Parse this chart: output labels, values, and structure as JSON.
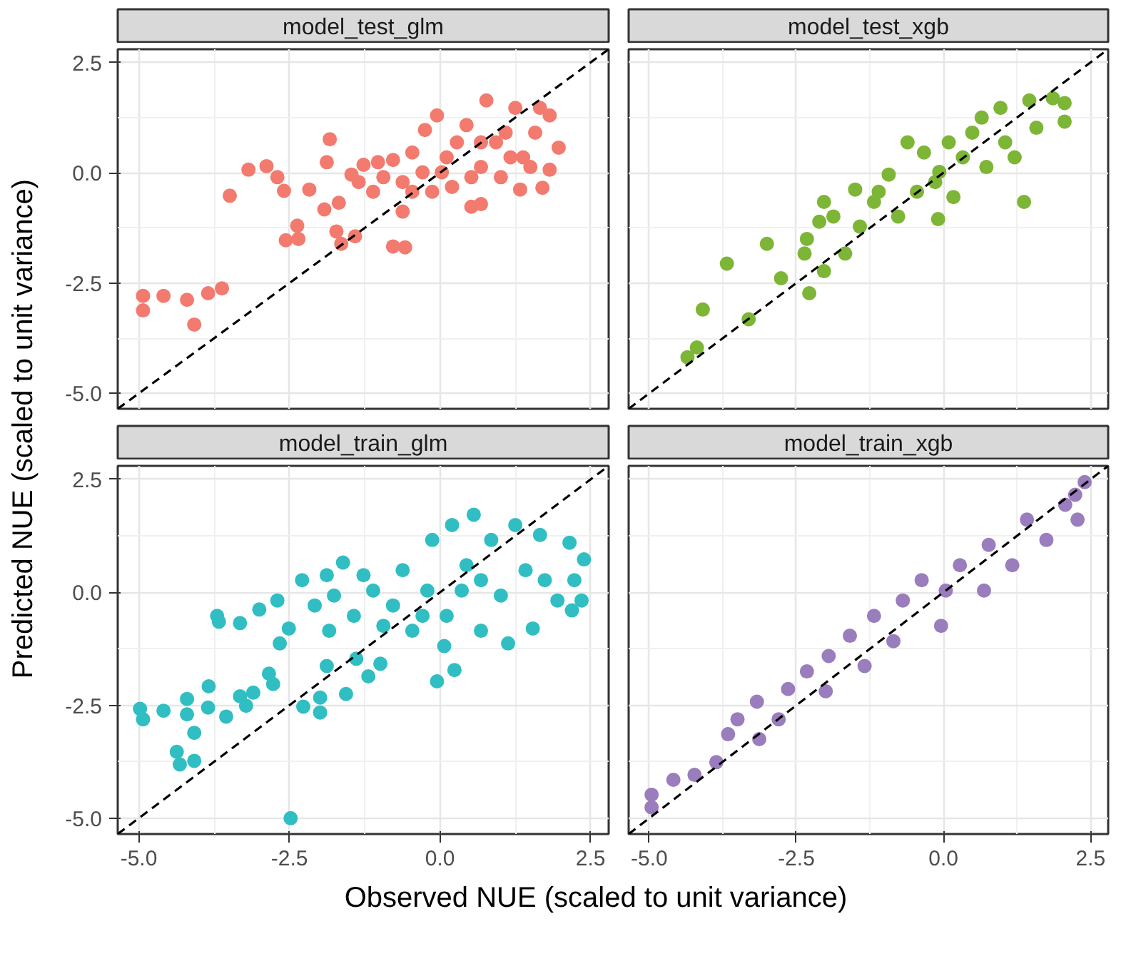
{
  "chart_data": [
    {
      "type": "scatter",
      "title": "model_test_glm",
      "ylabel": "Predicted NUE (scaled to unit variance)",
      "xlim": [
        -5.35,
        2.8
      ],
      "ylim": [
        -5.35,
        2.8
      ],
      "xticks": [
        {
          "value": -5,
          "label": null
        },
        {
          "value": -2.5,
          "label": null
        },
        {
          "value": 0,
          "label": null
        },
        {
          "value": 2.5,
          "label": null
        }
      ],
      "yticks": [
        {
          "value": -5,
          "label": "-5.0"
        },
        {
          "value": -2.5,
          "label": "-2.5"
        },
        {
          "value": 0,
          "label": "0.0"
        },
        {
          "value": 2.5,
          "label": "2.5"
        }
      ],
      "tick_labels": "y",
      "grid": true,
      "series": [
        {
          "marker": "circle",
          "color": "#f37a6e",
          "x": [
            -4.93,
            -4.93,
            -4.59,
            -4.2,
            -4.08,
            -3.85,
            -3.62,
            -3.49,
            -3.18,
            -2.88,
            -2.7,
            -2.59,
            -2.56,
            -2.37,
            -2.35,
            -2.17,
            -1.92,
            -1.88,
            -1.83,
            -1.68,
            -1.72,
            -1.64,
            -1.41,
            -0.78,
            -0.58,
            -1.47,
            -1.27,
            -1.11,
            -0.94,
            -0.78,
            -0.62,
            -0.46,
            -0.62,
            -0.29,
            -0.25,
            -0.05,
            -0.13,
            0.11,
            0.2,
            0.44,
            0.52,
            0.68,
            0.68,
            0.77,
            0.93,
            1.01,
            1.25,
            1.33,
            1.38,
            1.58,
            1.7,
            1.82,
            1.82,
            1.97,
            1.66,
            1.09,
            0.28,
            0.03,
            -1.03,
            0.68,
            1.17,
            1.5,
            -0.46,
            0.52,
            -1.35
          ],
          "values": [
            -2.79,
            -3.12,
            -2.79,
            -2.88,
            -3.44,
            -2.73,
            -2.62,
            -0.52,
            0.07,
            0.15,
            -0.1,
            -0.41,
            -1.53,
            -1.2,
            -1.5,
            -0.38,
            -0.83,
            0.24,
            0.76,
            -0.68,
            -1.33,
            -1.61,
            -1.44,
            -1.67,
            -1.69,
            -0.04,
            0.18,
            -0.43,
            -0.1,
            0.29,
            -0.21,
            0.46,
            -0.88,
            0.01,
            0.97,
            1.3,
            -0.43,
            0.35,
            -0.32,
            1.08,
            -0.77,
            -0.71,
            0.13,
            1.64,
            0.69,
            -0.1,
            1.47,
            -0.38,
            0.35,
            0.91,
            -0.34,
            1.3,
            0.07,
            0.57,
            1.47,
            0.91,
            0.69,
            0.01,
            0.24,
            0.69,
            0.35,
            0.13,
            -0.43,
            -0.1,
            -0.21
          ]
        },
        {
          "type": "line",
          "color": "#000000",
          "line_style": "dashed",
          "x": [
            -5.35,
            2.8
          ],
          "values": [
            -5.35,
            2.8
          ]
        }
      ]
    },
    {
      "type": "scatter",
      "title": "model_test_xgb",
      "xlim": [
        -5.35,
        2.8
      ],
      "ylim": [
        -5.35,
        2.8
      ],
      "xticks": [
        {
          "value": -5,
          "label": null
        },
        {
          "value": -2.5,
          "label": null
        },
        {
          "value": 0,
          "label": null
        },
        {
          "value": 2.5,
          "label": null
        }
      ],
      "yticks": [
        {
          "value": -5,
          "label": null
        },
        {
          "value": -2.5,
          "label": null
        },
        {
          "value": 0,
          "label": null
        },
        {
          "value": 2.5,
          "label": null
        }
      ],
      "tick_labels": false,
      "grid": true,
      "series": [
        {
          "marker": "circle",
          "color": "#7db536",
          "x": [
            -4.35,
            -4.19,
            -4.09,
            -3.31,
            -3.68,
            -3.0,
            -2.76,
            -2.28,
            -2.32,
            -2.36,
            -2.03,
            -2.03,
            -2.11,
            -1.87,
            -1.67,
            -1.5,
            -1.42,
            -1.18,
            -0.93,
            -0.77,
            -0.61,
            -0.45,
            -0.33,
            -0.09,
            -0.07,
            0.09,
            0.17,
            0.33,
            0.49,
            0.65,
            0.73,
            0.97,
            1.05,
            1.21,
            1.37,
            1.46,
            1.58,
            1.86,
            2.06,
            2.06,
            -1.1,
            -0.14
          ],
          "values": [
            -4.18,
            -3.96,
            -3.1,
            -3.32,
            -2.06,
            -1.61,
            -2.39,
            -2.73,
            -1.5,
            -1.83,
            -2.23,
            -0.66,
            -1.11,
            -0.99,
            -1.83,
            -0.38,
            -1.22,
            -0.66,
            -0.04,
            -0.99,
            0.69,
            -0.43,
            0.46,
            -1.05,
            0.02,
            0.69,
            -0.55,
            0.35,
            0.91,
            1.25,
            0.13,
            1.47,
            0.69,
            0.35,
            -0.66,
            1.64,
            1.02,
            1.69,
            1.58,
            1.16,
            -0.43,
            -0.21
          ]
        },
        {
          "type": "line",
          "color": "#000000",
          "line_style": "dashed",
          "x": [
            -5.35,
            2.8
          ],
          "values": [
            -5.35,
            2.8
          ]
        }
      ]
    },
    {
      "type": "scatter",
      "title": "model_train_glm",
      "xlabel": "Observed NUE (scaled to unit variance)",
      "xlim": [
        -5.35,
        2.8
      ],
      "ylim": [
        -5.35,
        2.8
      ],
      "xticks": [
        {
          "value": -5,
          "label": "-5.0"
        },
        {
          "value": -2.5,
          "label": "-2.5"
        },
        {
          "value": 0,
          "label": "0.0"
        },
        {
          "value": 2.5,
          "label": "2.5"
        }
      ],
      "yticks": [
        {
          "value": -5,
          "label": "-5.0"
        },
        {
          "value": -2.5,
          "label": "-2.5"
        },
        {
          "value": 0,
          "label": "0.0"
        },
        {
          "value": 2.5,
          "label": "2.5"
        }
      ],
      "grid": true,
      "series": [
        {
          "marker": "circle",
          "color": "#30bec3",
          "x": [
            -2.48,
            -4.98,
            -4.93,
            -4.59,
            -4.37,
            -4.32,
            -4.2,
            -4.2,
            -4.08,
            -4.08,
            -3.85,
            -3.84,
            -3.55,
            -3.7,
            -3.67,
            -3.32,
            -3.32,
            -3.22,
            -3.1,
            -3.0,
            -2.84,
            -2.77,
            -2.7,
            -2.66,
            -2.51,
            -2.29,
            -2.27,
            -1.99,
            -1.99,
            -1.88,
            -1.88,
            -1.61,
            -1.56,
            -1.39,
            -1.19,
            -1.27,
            -0.99,
            -0.05,
            0.24,
            0.07,
            0.56,
            1.13,
            2.15,
            2.39,
            2.23,
            2.35,
            2.19,
            1.95,
            1.54,
            -2.08,
            -1.76,
            -1.43,
            -1.11,
            -0.78,
            -0.62,
            -0.46,
            -0.21,
            -0.13,
            0.2,
            0.11,
            0.44,
            0.68,
            0.85,
            1.01,
            1.25,
            1.42,
            1.66,
            1.74,
            0.36,
            0.68,
            -0.29,
            -0.94,
            -1.84
          ],
          "values": [
            -5.0,
            -2.58,
            -2.81,
            -2.62,
            -3.53,
            -3.81,
            -2.7,
            -2.36,
            -3.11,
            -3.73,
            -2.55,
            -2.08,
            -2.75,
            -0.52,
            -0.65,
            -0.68,
            -2.3,
            -2.51,
            -2.22,
            -0.38,
            -1.8,
            -2.03,
            -0.18,
            -1.13,
            -0.8,
            0.27,
            -2.53,
            -2.33,
            -2.66,
            0.38,
            -1.63,
            0.66,
            -2.25,
            -1.47,
            -1.86,
            0.38,
            -1.58,
            -1.97,
            -1.72,
            -1.19,
            1.72,
            -1.13,
            1.1,
            0.73,
            0.27,
            -0.18,
            -0.4,
            -0.18,
            -0.8,
            -0.29,
            -0.07,
            -0.52,
            0.04,
            -0.29,
            0.49,
            -0.85,
            0.04,
            1.16,
            1.49,
            -0.52,
            0.6,
            -0.85,
            1.16,
            -0.07,
            1.49,
            0.49,
            1.27,
            0.27,
            0.04,
            0.27,
            -0.52,
            -0.74,
            -0.85
          ]
        },
        {
          "type": "line",
          "color": "#000000",
          "line_style": "dashed",
          "x": [
            -5.35,
            2.8
          ],
          "values": [
            -5.35,
            2.8
          ]
        }
      ]
    },
    {
      "type": "scatter",
      "title": "model_train_xgb",
      "xlim": [
        -5.35,
        2.8
      ],
      "ylim": [
        -5.35,
        2.8
      ],
      "xticks": [
        {
          "value": -5,
          "label": "-5.0"
        },
        {
          "value": -2.5,
          "label": "-2.5"
        },
        {
          "value": 0,
          "label": "0.0"
        },
        {
          "value": 2.5,
          "label": "2.5"
        }
      ],
      "yticks": [
        {
          "value": -5,
          "label": null
        },
        {
          "value": -2.5,
          "label": null
        },
        {
          "value": 0,
          "label": null
        },
        {
          "value": 2.5,
          "label": null
        }
      ],
      "tick_labels": "x",
      "grid": true,
      "series": [
        {
          "marker": "circle",
          "color": "#9a7dbd",
          "x": [
            -4.96,
            -4.96,
            -4.59,
            -4.23,
            -3.86,
            -3.66,
            -3.5,
            -3.17,
            -3.13,
            -2.8,
            -2.64,
            -2.32,
            -2.0,
            -1.95,
            -1.59,
            -1.34,
            -1.18,
            -0.85,
            -0.69,
            -0.37,
            -0.04,
            0.04,
            0.28,
            0.69,
            0.77,
            1.17,
            1.42,
            1.75,
            2.07,
            2.28,
            2.4,
            2.24
          ],
          "values": [
            -4.76,
            -4.48,
            -4.15,
            -4.04,
            -3.76,
            -3.14,
            -2.81,
            -2.42,
            -3.25,
            -2.81,
            -2.14,
            -1.75,
            -2.19,
            -1.41,
            -0.96,
            -1.63,
            -0.52,
            -1.08,
            -0.18,
            0.27,
            -0.74,
            0.04,
            0.6,
            0.04,
            1.05,
            0.6,
            1.61,
            1.16,
            1.94,
            1.61,
            2.44,
            2.16
          ]
        },
        {
          "type": "line",
          "color": "#000000",
          "line_style": "dashed",
          "x": [
            -5.35,
            2.8
          ],
          "values": [
            -5.35,
            2.8
          ]
        }
      ]
    }
  ]
}
